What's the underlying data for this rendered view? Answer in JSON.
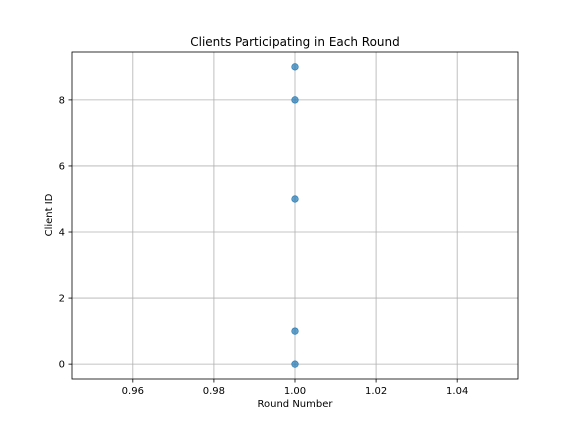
{
  "chart_data": {
    "type": "scatter",
    "title": "Clients Participating in Each Round",
    "xlabel": "Round Number",
    "ylabel": "Client ID",
    "xlim": [
      0.945,
      1.055
    ],
    "ylim": [
      -0.45,
      9.45
    ],
    "x_ticks": [
      0.96,
      0.98,
      1.0,
      1.02,
      1.04
    ],
    "x_tick_labels": [
      "0.96",
      "0.98",
      "1.00",
      "1.02",
      "1.04"
    ],
    "y_ticks": [
      0,
      2,
      4,
      6,
      8
    ],
    "y_tick_labels": [
      "0",
      "2",
      "4",
      "6",
      "8"
    ],
    "grid": true,
    "marker_color": "#1f77b4",
    "points": [
      {
        "x": 1.0,
        "y": 9
      },
      {
        "x": 1.0,
        "y": 8
      },
      {
        "x": 1.0,
        "y": 5
      },
      {
        "x": 1.0,
        "y": 1
      },
      {
        "x": 1.0,
        "y": 0
      }
    ]
  }
}
